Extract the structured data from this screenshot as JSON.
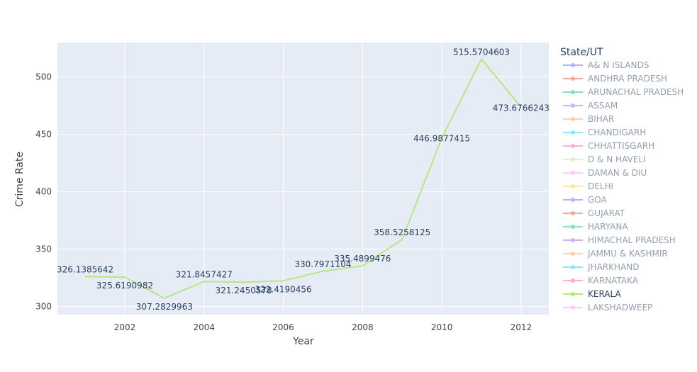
{
  "chart_data": {
    "type": "line",
    "xlabel": "Year",
    "ylabel": "Crime Rate",
    "xlim": [
      2000.3,
      2012.7
    ],
    "ylim": [
      293,
      530
    ],
    "x_ticks": [
      2002,
      2004,
      2006,
      2008,
      2010,
      2012
    ],
    "y_ticks": [
      300,
      350,
      400,
      450,
      500
    ],
    "grid": true,
    "plot_background": "#e5ecf6",
    "legend_title": "State/UT",
    "legend_placement": "right",
    "series": [
      {
        "name": "A& N ISLANDS",
        "color": "#636efa",
        "active": false,
        "x": [],
        "y": []
      },
      {
        "name": "ANDHRA PRADESH",
        "color": "#ef553b",
        "active": false,
        "x": [],
        "y": []
      },
      {
        "name": "ARUNACHAL PRADESH",
        "color": "#00cc96",
        "active": false,
        "x": [],
        "y": []
      },
      {
        "name": "ASSAM",
        "color": "#ab63fa",
        "active": false,
        "x": [],
        "y": []
      },
      {
        "name": "BIHAR",
        "color": "#ffa15a",
        "active": false,
        "x": [],
        "y": []
      },
      {
        "name": "CHANDIGARH",
        "color": "#19d3f3",
        "active": false,
        "x": [],
        "y": []
      },
      {
        "name": "CHHATTISGARH",
        "color": "#ff6692",
        "active": false,
        "x": [],
        "y": []
      },
      {
        "name": "D & N HAVELI",
        "color": "#b6e880",
        "active": false,
        "x": [],
        "y": []
      },
      {
        "name": "DAMAN & DIU",
        "color": "#ff97ff",
        "active": false,
        "x": [],
        "y": []
      },
      {
        "name": "DELHI",
        "color": "#fecb52",
        "active": false,
        "x": [],
        "y": []
      },
      {
        "name": "GOA",
        "color": "#636efa",
        "active": false,
        "x": [],
        "y": []
      },
      {
        "name": "GUJARAT",
        "color": "#ef553b",
        "active": false,
        "x": [],
        "y": []
      },
      {
        "name": "HARYANA",
        "color": "#00cc96",
        "active": false,
        "x": [],
        "y": []
      },
      {
        "name": "HIMACHAL PRADESH",
        "color": "#ab63fa",
        "active": false,
        "x": [],
        "y": []
      },
      {
        "name": "JAMMU & KASHMIR",
        "color": "#ffa15a",
        "active": false,
        "x": [],
        "y": []
      },
      {
        "name": "JHARKHAND",
        "color": "#19d3f3",
        "active": false,
        "x": [],
        "y": []
      },
      {
        "name": "KARNATAKA",
        "color": "#ff6692",
        "active": false,
        "x": [],
        "y": []
      },
      {
        "name": "KERALA",
        "color": "#b6e880",
        "active": true,
        "x": [
          2001,
          2002,
          2003,
          2004,
          2005,
          2006,
          2007,
          2008,
          2009,
          2010,
          2011,
          2012
        ],
        "y": [
          326.1385642,
          325.6190982,
          307.2829963,
          321.8457427,
          321.2450578,
          322.4190456,
          330.7971104,
          335.4899476,
          358.5258125,
          446.9877415,
          515.5704603,
          473.6766243
        ],
        "labels": [
          "326.1385642",
          "325.6190982",
          "307.2829963",
          "321.8457427",
          "321.2450578",
          "322.4190456",
          "330.7971104",
          "335.4899476",
          "358.5258125",
          "446.9877415",
          "515.5704603",
          "473.6766243"
        ]
      },
      {
        "name": "LAKSHADWEEP",
        "color": "#ff97ff",
        "active": false,
        "x": [],
        "y": []
      }
    ]
  }
}
